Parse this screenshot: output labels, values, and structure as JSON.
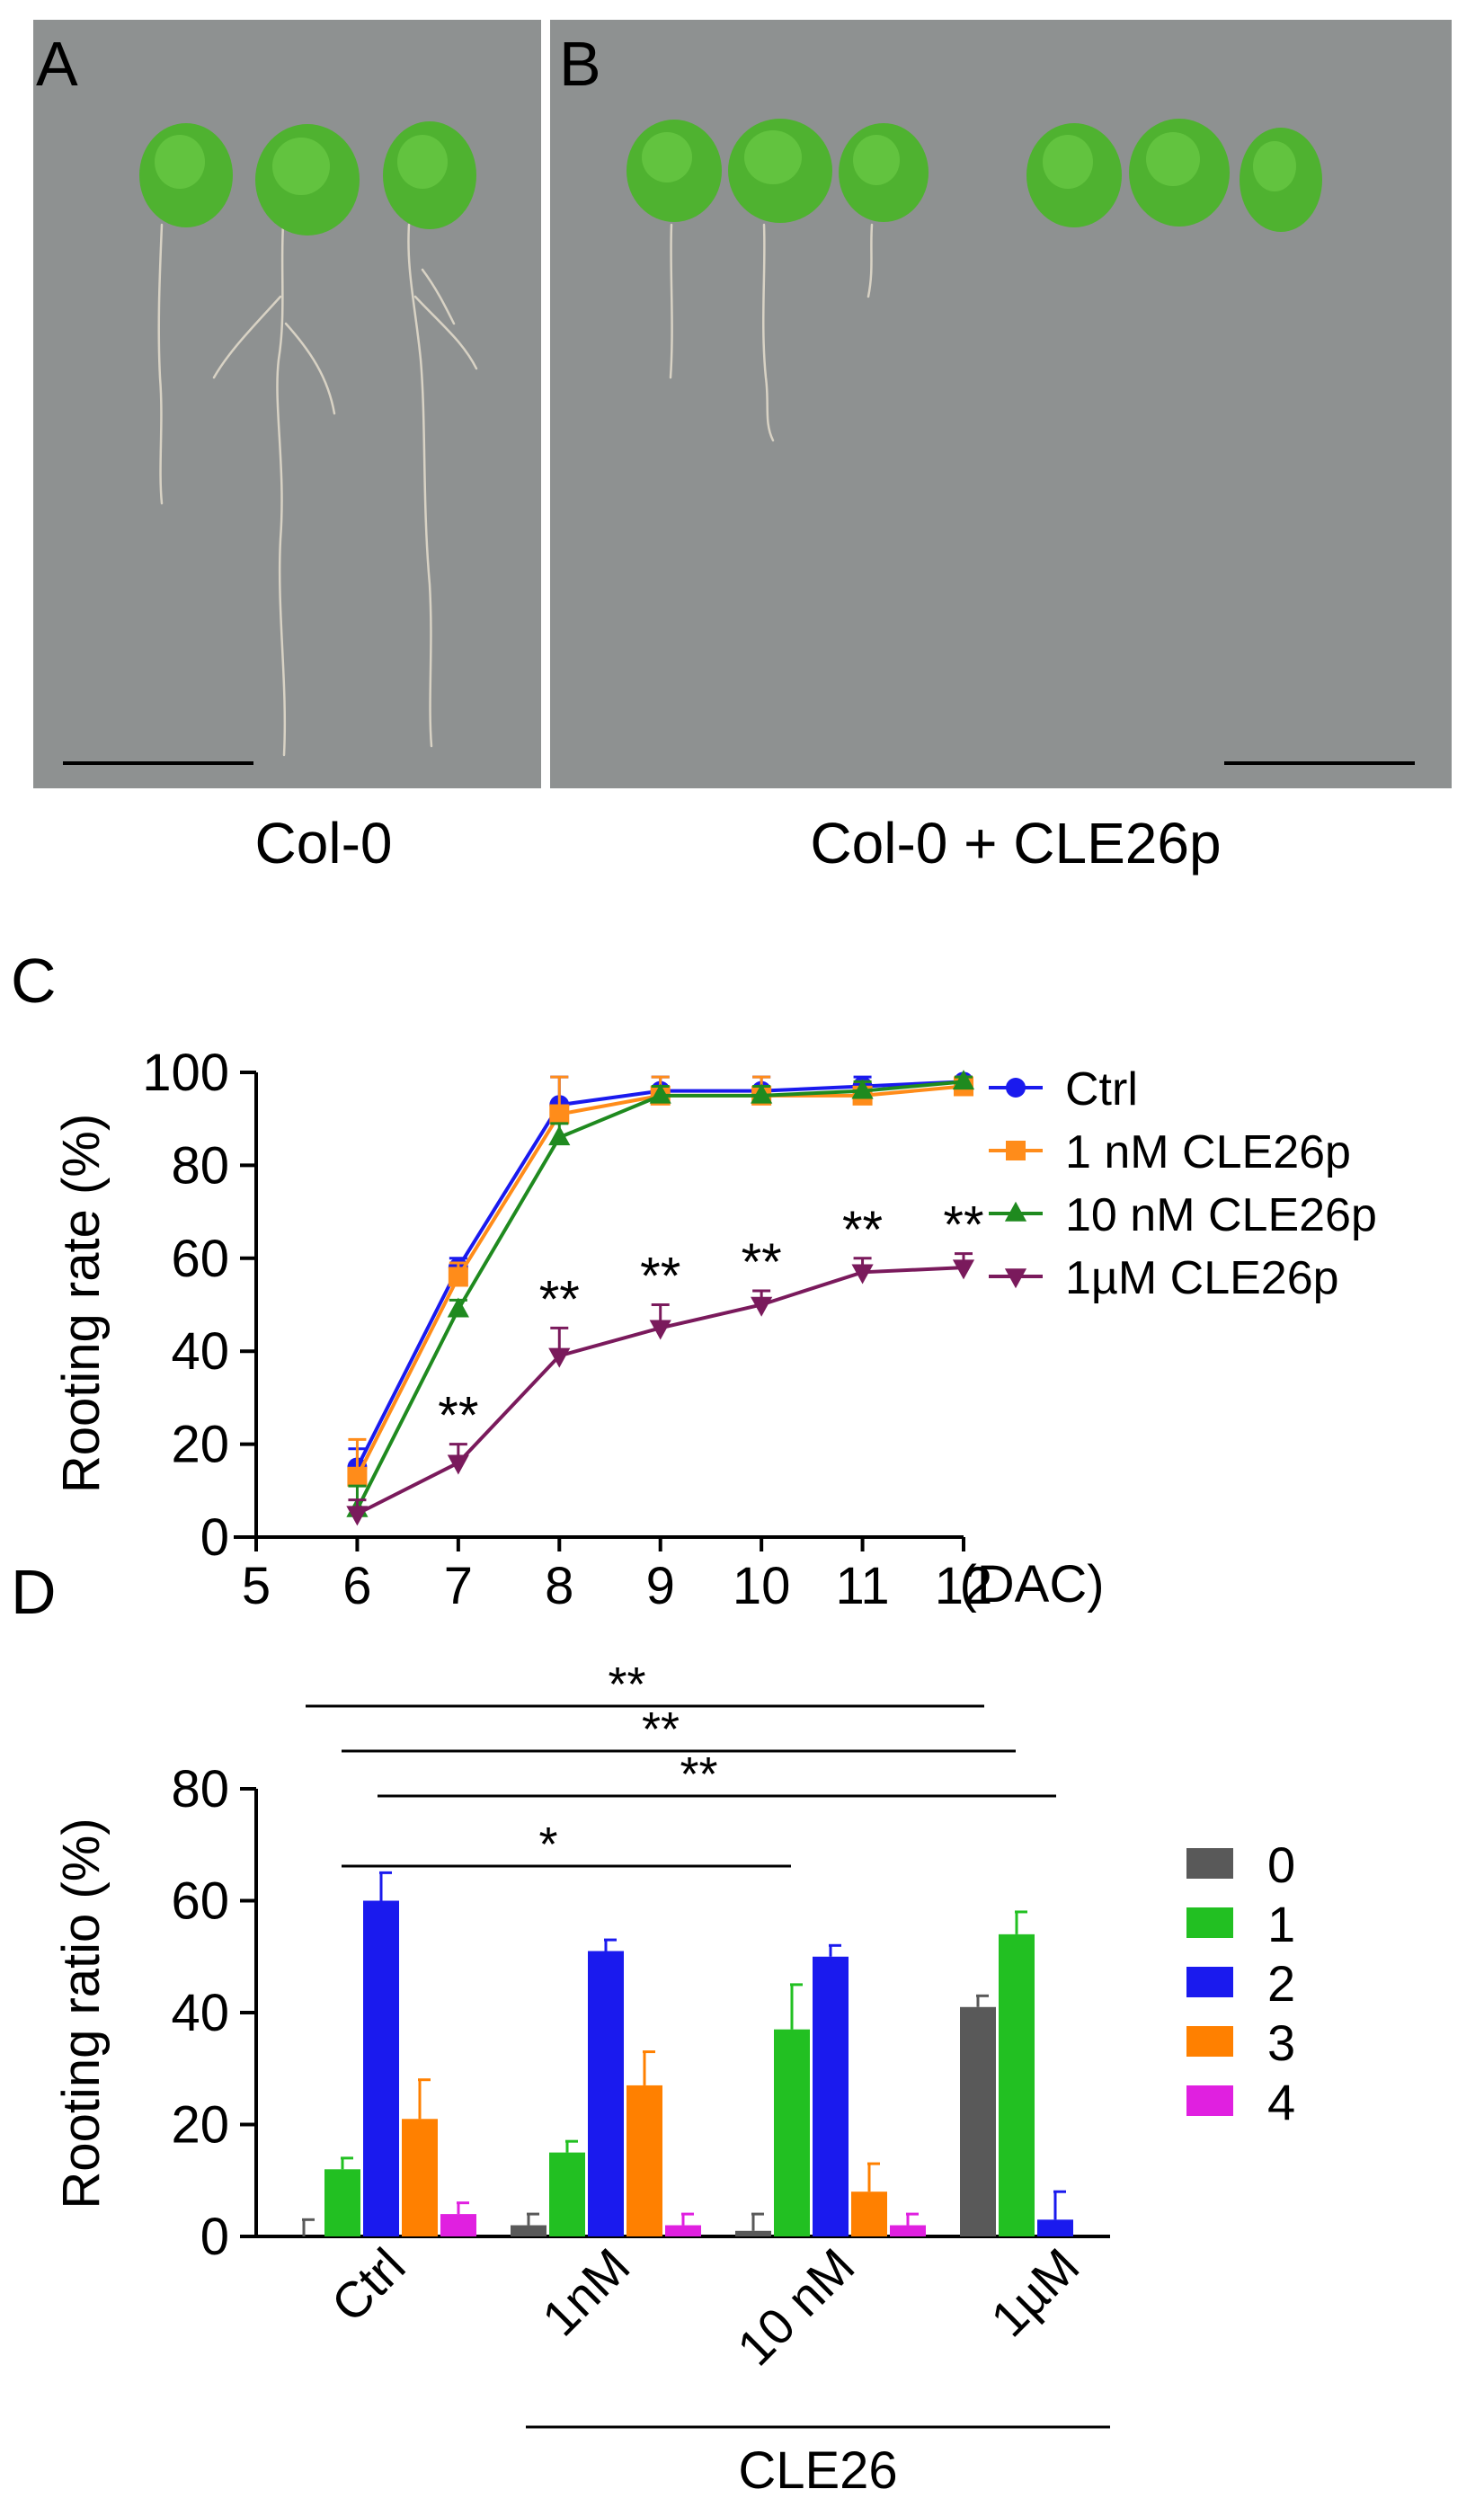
{
  "panels": {
    "a": {
      "letter": "A",
      "caption": "Col-0"
    },
    "b": {
      "letter": "B",
      "caption": "Col-0 + CLE26p"
    },
    "c": {
      "letter": "C"
    },
    "d": {
      "letter": "D"
    }
  },
  "colors": {
    "photo_bg": "#8e9191",
    "leaf": "#4fb230",
    "root": "#d9d4c6",
    "ctrl": "#1a1aee",
    "n1": "#ff8c1a",
    "n10": "#1f8a1f",
    "u1": "#7a1a5c",
    "r0": "#595959",
    "r1": "#22c022",
    "r2": "#1a1aee",
    "r3": "#ff8000",
    "r4": "#e020e0"
  },
  "chart_data": [
    {
      "type": "line",
      "panel": "C",
      "ylabel": "Rooting  rate (%)",
      "x_unit_label": "(DAC)",
      "xlim": [
        5,
        12
      ],
      "ylim": [
        0,
        100
      ],
      "x_ticks": [
        "5",
        "6",
        "7",
        "8",
        "9",
        "10",
        "11",
        "12"
      ],
      "y_ticks": [
        "0",
        "20",
        "40",
        "60",
        "80",
        "100"
      ],
      "x": [
        6,
        7,
        8,
        9,
        10,
        11,
        12
      ],
      "legend_position": "right",
      "series": [
        {
          "name": "Ctrl",
          "color": "#1a1aee",
          "marker": "circle",
          "values": [
            15,
            58,
            93,
            96,
            96,
            97,
            98
          ],
          "errors": [
            4,
            2,
            6,
            3,
            3,
            2,
            1
          ]
        },
        {
          "name": "1 nM CLE26p",
          "color": "#ff8c1a",
          "marker": "square",
          "values": [
            13,
            56,
            91,
            95,
            95,
            95,
            97
          ],
          "errors": [
            8,
            3,
            8,
            4,
            4,
            3,
            2
          ]
        },
        {
          "name": "10 nM CLE26p",
          "color": "#1f8a1f",
          "marker": "triangle-up",
          "values": [
            6,
            49,
            86,
            95,
            95,
            96,
            98
          ],
          "errors": [
            5,
            2,
            3,
            2,
            2,
            2,
            1
          ]
        },
        {
          "name": "1µM CLE26p",
          "color": "#7a1a5c",
          "marker": "triangle-down",
          "values": [
            5,
            16,
            39,
            45,
            50,
            57,
            58
          ],
          "errors": [
            3,
            4,
            6,
            5,
            3,
            3,
            3
          ]
        }
      ],
      "annotations": [
        {
          "x": 7,
          "text": "**"
        },
        {
          "x": 8,
          "text": "**"
        },
        {
          "x": 9,
          "text": "**"
        },
        {
          "x": 10,
          "text": "**"
        },
        {
          "x": 11,
          "text": "**"
        },
        {
          "x": 12,
          "text": "**"
        }
      ]
    },
    {
      "type": "bar",
      "panel": "D",
      "ylabel": "Rooting  ratio (%)",
      "ylim": [
        0,
        80
      ],
      "y_ticks": [
        "0",
        "20",
        "40",
        "60",
        "80"
      ],
      "categories": [
        "Ctrl",
        "1nM",
        "10 nM",
        "1µM"
      ],
      "group_label": "CLE26",
      "legend_position": "right",
      "series": [
        {
          "name": "0",
          "color": "#595959",
          "values": [
            0,
            2,
            1,
            41
          ],
          "errors": [
            3,
            2,
            3,
            2
          ]
        },
        {
          "name": "1",
          "color": "#22c022",
          "values": [
            12,
            15,
            37,
            54
          ],
          "errors": [
            2,
            2,
            8,
            4
          ]
        },
        {
          "name": "2",
          "color": "#1a1aee",
          "values": [
            60,
            51,
            50,
            3
          ],
          "errors": [
            5,
            2,
            2,
            5
          ]
        },
        {
          "name": "3",
          "color": "#ff8000",
          "values": [
            21,
            27,
            8,
            0
          ],
          "errors": [
            7,
            6,
            5,
            0
          ]
        },
        {
          "name": "4",
          "color": "#e020e0",
          "values": [
            4,
            2,
            2,
            0
          ],
          "errors": [
            2,
            2,
            2,
            0
          ]
        }
      ],
      "significance": [
        {
          "text": "**",
          "from": "Ctrl",
          "to": "1µM"
        },
        {
          "text": "**",
          "from": "Ctrl",
          "to": "1µM"
        },
        {
          "text": "**",
          "from": "Ctrl",
          "to": "1µM"
        },
        {
          "text": "*",
          "from": "Ctrl",
          "to": "10 nM"
        }
      ]
    }
  ]
}
